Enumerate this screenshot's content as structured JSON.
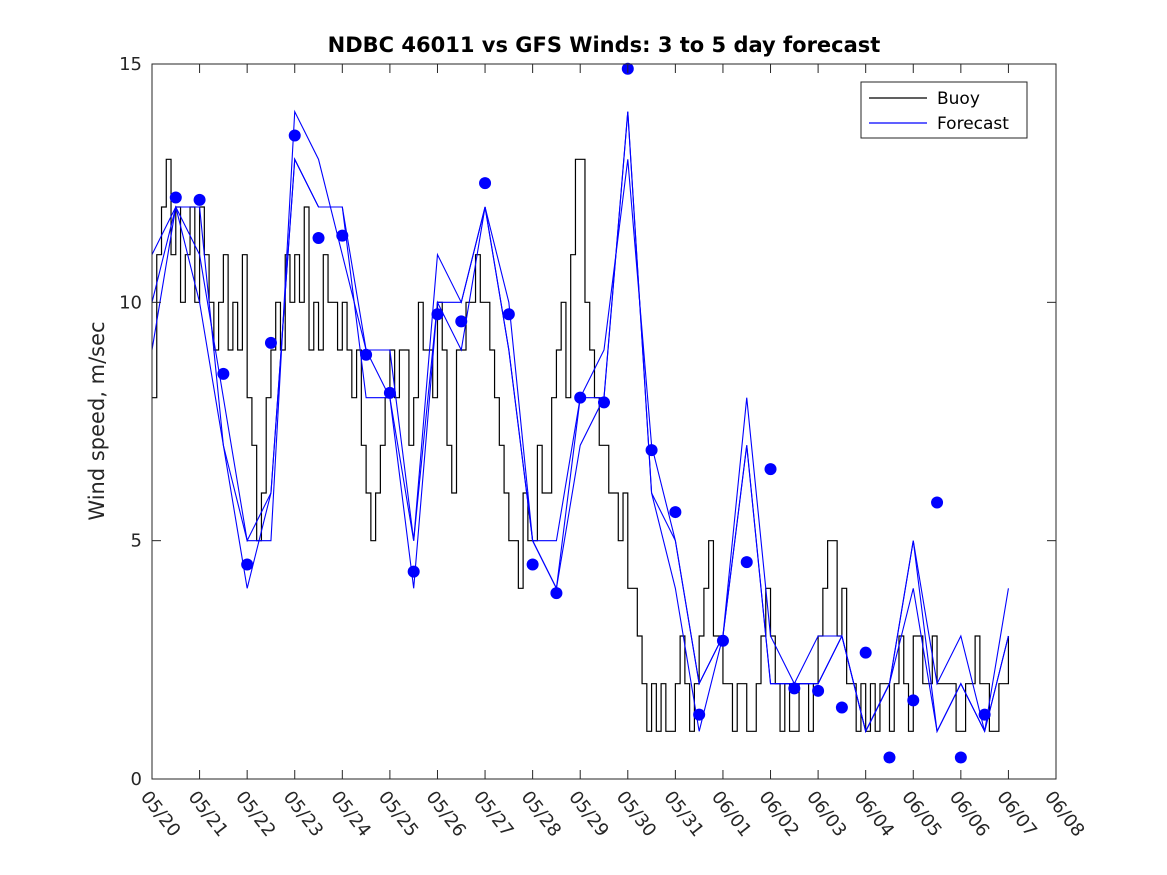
{
  "chart_data": {
    "type": "line",
    "title": "NDBC 46011 vs GFS Winds: 3 to 5 day forecast",
    "xlabel": "",
    "ylabel": "Wind speed, m/sec",
    "xlim": [
      "05/20",
      "06/08"
    ],
    "ylim": [
      0,
      15
    ],
    "yticks": [
      0,
      5,
      10,
      15
    ],
    "xticks": [
      "05/20",
      "05/21",
      "05/22",
      "05/23",
      "05/24",
      "05/25",
      "05/26",
      "05/27",
      "05/28",
      "05/29",
      "05/30",
      "05/31",
      "06/01",
      "06/02",
      "06/03",
      "06/04",
      "06/05",
      "06/06",
      "06/07",
      "06/08"
    ],
    "x_unit": "days since 05/20",
    "legend": {
      "placement": "top-right",
      "entries": [
        "Buoy",
        "Forecast"
      ]
    },
    "colors": {
      "Buoy": "#000000",
      "Forecast": "#0000ff"
    },
    "series": [
      {
        "name": "Buoy",
        "x": [
          0.0,
          0.1,
          0.2,
          0.3,
          0.4,
          0.5,
          0.6,
          0.7,
          0.8,
          0.9,
          1.0,
          1.1,
          1.2,
          1.3,
          1.4,
          1.5,
          1.6,
          1.7,
          1.8,
          1.9,
          2.0,
          2.1,
          2.2,
          2.3,
          2.4,
          2.5,
          2.6,
          2.7,
          2.8,
          2.9,
          3.0,
          3.1,
          3.2,
          3.3,
          3.4,
          3.5,
          3.6,
          3.7,
          3.8,
          3.9,
          4.0,
          4.1,
          4.2,
          4.3,
          4.4,
          4.5,
          4.6,
          4.7,
          4.8,
          4.9,
          5.0,
          5.1,
          5.2,
          5.3,
          5.4,
          5.5,
          5.6,
          5.7,
          5.8,
          5.9,
          6.0,
          6.1,
          6.2,
          6.3,
          6.4,
          6.5,
          6.6,
          6.7,
          6.8,
          6.9,
          7.0,
          7.1,
          7.2,
          7.3,
          7.4,
          7.5,
          7.6,
          7.7,
          7.8,
          7.9,
          8.0,
          8.1,
          8.2,
          8.3,
          8.4,
          8.5,
          8.6,
          8.7,
          8.8,
          8.9,
          9.0,
          9.1,
          9.2,
          9.3,
          9.4,
          9.5,
          9.6,
          9.7,
          9.8,
          9.9,
          10.0,
          10.1,
          10.2,
          10.3,
          10.4,
          10.5,
          10.6,
          10.7,
          10.8,
          10.9,
          11.0,
          11.1,
          11.2,
          11.3,
          11.4,
          11.5,
          11.6,
          11.7,
          11.8,
          11.9,
          12.0,
          12.1,
          12.2,
          12.3,
          12.4,
          12.5,
          12.6,
          12.7,
          12.8,
          12.9,
          13.0,
          13.1,
          13.2,
          13.3,
          13.4,
          13.5,
          13.6,
          13.7,
          13.8,
          13.9,
          14.0,
          14.1,
          14.2,
          14.3,
          14.4,
          14.5,
          14.6,
          14.7,
          14.8,
          14.9,
          15.0,
          15.1,
          15.2,
          15.3,
          15.4,
          15.5,
          15.6,
          15.7,
          15.8,
          15.9,
          16.0,
          16.1,
          16.2,
          16.3,
          16.4,
          16.5,
          16.6,
          16.7,
          16.8,
          16.9,
          17.0,
          17.1,
          17.2,
          17.3,
          17.4,
          17.5,
          17.6,
          17.7,
          17.8,
          17.9,
          18.0
        ],
        "values": [
          8,
          11,
          12,
          13,
          11,
          12,
          10,
          11,
          12,
          10,
          12,
          11,
          10,
          9,
          10,
          11,
          9,
          10,
          9,
          11,
          8,
          7,
          5,
          6,
          8,
          9,
          10,
          9,
          11,
          10,
          11,
          10,
          12,
          9,
          10,
          9,
          11,
          10,
          10,
          9,
          10,
          9,
          8,
          9,
          7,
          6,
          5,
          6,
          7,
          8,
          9,
          8,
          9,
          9,
          7,
          8,
          10,
          9,
          9,
          8,
          10,
          9,
          7,
          6,
          9,
          9,
          10,
          10,
          11,
          10,
          10,
          9,
          8,
          7,
          6,
          5,
          5,
          4,
          6,
          5,
          5,
          7,
          6,
          6,
          8,
          9,
          10,
          8,
          11,
          13,
          13,
          10,
          9,
          8,
          7,
          7,
          6,
          6,
          5,
          6,
          4,
          4,
          3,
          2,
          1,
          2,
          1,
          2,
          1,
          1,
          2,
          3,
          2,
          1,
          2,
          3,
          4,
          5,
          3,
          3,
          2,
          2,
          1,
          2,
          2,
          1,
          1,
          2,
          3,
          4,
          3,
          2,
          1,
          2,
          1,
          1,
          2,
          2,
          1,
          2,
          3,
          4,
          5,
          5,
          3,
          4,
          2,
          2,
          1,
          2,
          1,
          2,
          1,
          2,
          2,
          1,
          2,
          3,
          2,
          1,
          3,
          3,
          2,
          2,
          3,
          2,
          2,
          2,
          2,
          1,
          1,
          2,
          2,
          3,
          2,
          2,
          1,
          1,
          2,
          2,
          3
        ]
      },
      {
        "name": "Forecast",
        "runs": [
          {
            "x": [
              0.0,
              0.5,
              1.0,
              1.5,
              2.0,
              2.5,
              3.0,
              3.5,
              4.0,
              4.5,
              5.0,
              5.5,
              6.0,
              6.5,
              7.0,
              7.5,
              8.0,
              8.5,
              9.0,
              9.5,
              10.0,
              10.5,
              11.0,
              11.5,
              12.0,
              12.5,
              13.0,
              13.5,
              14.0,
              14.5,
              15.0,
              15.5,
              16.0,
              16.5,
              17.0,
              17.5,
              18.0
            ],
            "y": [
              9,
              12,
              12,
              7,
              5,
              6,
              13,
              12,
              12,
              8,
              8,
              4,
              10,
              9,
              12,
              9,
              5,
              4,
              8,
              8,
              14,
              6,
              5,
              2,
              3,
              7,
              2,
              2,
              2,
              3,
              1,
              2,
              4,
              1,
              2,
              1,
              3
            ]
          },
          {
            "x": [
              0.0,
              0.5,
              1.0,
              1.5,
              2.0,
              2.5,
              3.0,
              3.5,
              4.0,
              4.5,
              5.0,
              5.5,
              6.0,
              6.5,
              7.0,
              7.5,
              8.0,
              8.5,
              9.0,
              9.5,
              10.0,
              10.5,
              11.0,
              11.5,
              12.0,
              12.5,
              13.0,
              13.5,
              14.0,
              14.5,
              15.0,
              15.5,
              16.0,
              16.5,
              17.0,
              17.5,
              18.0
            ],
            "y": [
              10,
              12,
              11,
              8,
              5,
              5,
              14,
              13,
              11,
              9,
              8,
              5,
              11,
              10,
              12,
              9,
              5,
              5,
              8,
              9,
              13,
              7,
              5,
              2,
              3,
              8,
              3,
              2,
              3,
              3,
              1,
              2,
              5,
              2,
              3,
              1,
              4
            ]
          },
          {
            "x": [
              0.0,
              0.5,
              1.0,
              1.5,
              2.0,
              2.5,
              3.0,
              3.5,
              4.0,
              4.5,
              5.0,
              5.5,
              6.0,
              6.5,
              7.0,
              7.5,
              8.0,
              8.5,
              9.0,
              9.5,
              10.0,
              10.5,
              11.0,
              11.5,
              12.0,
              12.5,
              13.0,
              13.5,
              14.0,
              14.5,
              15.0,
              15.5,
              16.0,
              16.5,
              17.0,
              17.5,
              18.0
            ],
            "y": [
              11,
              12,
              10,
              7,
              4,
              6,
              13,
              12,
              12,
              9,
              9,
              5,
              10,
              10,
              12,
              10,
              5,
              4,
              7,
              8,
              14,
              6,
              4,
              1,
              3,
              7,
              2,
              2,
              2,
              3,
              1,
              2,
              5,
              1,
              2,
              1,
              3
            ]
          }
        ],
        "points": {
          "x": [
            0.5,
            1.0,
            1.5,
            2.0,
            2.5,
            3.0,
            3.5,
            4.0,
            4.5,
            5.0,
            5.5,
            6.0,
            6.5,
            7.0,
            7.5,
            8.0,
            8.5,
            9.0,
            9.5,
            10.0,
            10.5,
            11.0,
            11.5,
            12.0,
            12.5,
            13.0,
            13.5,
            14.0,
            14.5,
            15.0,
            15.5,
            16.0,
            16.5,
            17.0,
            17.5
          ],
          "y": [
            12.2,
            12.15,
            8.5,
            4.5,
            9.15,
            13.5,
            11.35,
            11.4,
            8.9,
            8.1,
            4.35,
            9.75,
            9.6,
            12.5,
            9.75,
            4.5,
            3.9,
            8.0,
            7.9,
            14.9,
            6.9,
            5.6,
            1.35,
            2.9,
            4.55,
            6.5,
            1.9,
            1.85,
            1.5,
            2.65,
            0.45,
            1.65,
            5.8,
            0.45,
            1.35
          ]
        }
      }
    ]
  }
}
